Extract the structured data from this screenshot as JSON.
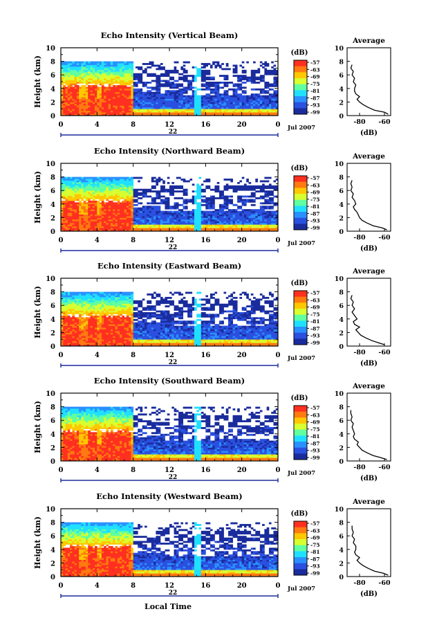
{
  "figure": {
    "colorbar_unit": "(dB)",
    "colorbar_ticks": [
      "-57",
      "-63",
      "-69",
      "-75",
      "-81",
      "-87",
      "-93",
      "-99"
    ],
    "colorbar_colors": [
      "#ff3020",
      "#ff7a10",
      "#ffc800",
      "#d8ff30",
      "#60ffa0",
      "#20e0ff",
      "#2a90ff",
      "#2a50e0",
      "#1a2c9c"
    ],
    "date_label": "Jul 2007",
    "day_label": "22",
    "x_title": "Local Time",
    "y_title": "Height (km)",
    "avg_title": "Average",
    "avg_xlabel": "(dB)"
  },
  "chart_data": [
    {
      "type": "heatmap",
      "title": "Echo Intensity (Vertical Beam)",
      "xlabel": "",
      "ylabel": "Height (km)",
      "xticks": [
        "0",
        "4",
        "8",
        "12",
        "16",
        "20",
        "0"
      ],
      "yticks": [
        "0",
        "2",
        "4",
        "6",
        "8",
        "10"
      ],
      "xlim": [
        0,
        24
      ],
      "ylim": [
        0,
        10
      ],
      "profile": {
        "title": "Average",
        "xlabel": "(dB)",
        "xticks": [
          "-80",
          "-60"
        ],
        "yticks": [
          "0",
          "2",
          "4",
          "6",
          "8",
          "10"
        ],
        "xlim": [
          -90,
          -55
        ],
        "height_km": [
          0.2,
          0.5,
          0.8,
          1.2,
          1.6,
          2.0,
          2.4,
          2.8,
          3.2,
          3.6,
          4.0,
          4.5,
          5.0,
          5.5,
          6.0,
          6.5,
          7.0,
          7.5
        ],
        "values_db": [
          -57,
          -60,
          -68,
          -73,
          -77,
          -80,
          -82,
          -80,
          -83,
          -84,
          -84,
          -83,
          -85,
          -84,
          -86,
          -85,
          -87,
          -86
        ]
      }
    },
    {
      "type": "heatmap",
      "title": "Echo Intensity (Northward Beam)",
      "xlabel": "",
      "ylabel": "Height (km)",
      "xticks": [
        "0",
        "4",
        "8",
        "12",
        "16",
        "20",
        "0"
      ],
      "yticks": [
        "0",
        "2",
        "4",
        "6",
        "8",
        "10"
      ],
      "xlim": [
        0,
        24
      ],
      "ylim": [
        0,
        10
      ],
      "profile": {
        "title": "Average",
        "xlabel": "(dB)",
        "xticks": [
          "-80",
          "-60"
        ],
        "yticks": [
          "0",
          "2",
          "4",
          "6",
          "8",
          "10"
        ],
        "xlim": [
          -90,
          -55
        ],
        "height_km": [
          0.2,
          0.5,
          0.8,
          1.2,
          1.6,
          2.0,
          2.4,
          2.8,
          3.2,
          3.6,
          4.0,
          4.5,
          5.0,
          5.5,
          6.0,
          6.5,
          7.0,
          7.5
        ],
        "values_db": [
          -58,
          -62,
          -69,
          -74,
          -78,
          -80,
          -81,
          -82,
          -84,
          -85,
          -83,
          -84,
          -86,
          -85,
          -87,
          -86,
          -87,
          -86
        ]
      }
    },
    {
      "type": "heatmap",
      "title": "Echo Intensity (Eastward Beam)",
      "xlabel": "",
      "ylabel": "Height (km)",
      "xticks": [
        "0",
        "4",
        "8",
        "12",
        "16",
        "20",
        "0"
      ],
      "yticks": [
        "0",
        "2",
        "4",
        "6",
        "8",
        "10"
      ],
      "xlim": [
        0,
        24
      ],
      "ylim": [
        0,
        10
      ],
      "profile": {
        "title": "Average",
        "xlabel": "(dB)",
        "xticks": [
          "-80",
          "-60"
        ],
        "yticks": [
          "0",
          "2",
          "4",
          "6",
          "8",
          "10"
        ],
        "xlim": [
          -90,
          -55
        ],
        "height_km": [
          0.2,
          0.5,
          0.8,
          1.2,
          1.6,
          2.0,
          2.4,
          2.8,
          3.2,
          3.6,
          4.0,
          4.5,
          5.0,
          5.5,
          6.0,
          6.5,
          7.0,
          7.5
        ],
        "values_db": [
          -60,
          -65,
          -70,
          -75,
          -79,
          -81,
          -83,
          -80,
          -84,
          -85,
          -82,
          -84,
          -86,
          -84,
          -86,
          -85,
          -87,
          -86
        ]
      }
    },
    {
      "type": "heatmap",
      "title": "Echo Intensity (Southward Beam)",
      "xlabel": "",
      "ylabel": "Height (km)",
      "xticks": [
        "0",
        "4",
        "8",
        "12",
        "16",
        "20",
        "0"
      ],
      "yticks": [
        "0",
        "2",
        "4",
        "6",
        "8",
        "10"
      ],
      "xlim": [
        0,
        24
      ],
      "ylim": [
        0,
        10
      ],
      "profile": {
        "title": "Average",
        "xlabel": "(dB)",
        "xticks": [
          "-80",
          "-60"
        ],
        "yticks": [
          "0",
          "2",
          "4",
          "6",
          "8",
          "10"
        ],
        "xlim": [
          -90,
          -55
        ],
        "height_km": [
          0.2,
          0.5,
          0.8,
          1.2,
          1.6,
          2.0,
          2.4,
          2.8,
          3.2,
          3.6,
          4.0,
          4.5,
          5.0,
          5.5,
          6.0,
          6.5,
          7.0,
          7.5
        ],
        "values_db": [
          -58,
          -63,
          -69,
          -74,
          -78,
          -80,
          -82,
          -81,
          -84,
          -85,
          -84,
          -85,
          -86,
          -85,
          -87,
          -86,
          -87,
          -87
        ]
      }
    },
    {
      "type": "heatmap",
      "title": "Echo Intensity (Westward Beam)",
      "xlabel": "Local Time",
      "ylabel": "Height (km)",
      "xticks": [
        "0",
        "4",
        "8",
        "12",
        "16",
        "20",
        "0"
      ],
      "yticks": [
        "0",
        "2",
        "4",
        "6",
        "8",
        "10"
      ],
      "xlim": [
        0,
        24
      ],
      "ylim": [
        0,
        10
      ],
      "profile": {
        "title": "Average",
        "xlabel": "(dB)",
        "xticks": [
          "-80",
          "-60"
        ],
        "yticks": [
          "0",
          "2",
          "4",
          "6",
          "8",
          "10"
        ],
        "xlim": [
          -90,
          -55
        ],
        "height_km": [
          0.2,
          0.5,
          0.8,
          1.2,
          1.6,
          2.0,
          2.4,
          2.8,
          3.2,
          3.6,
          4.0,
          4.5,
          5.0,
          5.5,
          6.0,
          6.5,
          7.0,
          7.5
        ],
        "values_db": [
          -57,
          -61,
          -68,
          -73,
          -77,
          -80,
          -82,
          -80,
          -83,
          -84,
          -83,
          -83,
          -85,
          -84,
          -86,
          -85,
          -86,
          -86
        ]
      }
    }
  ]
}
